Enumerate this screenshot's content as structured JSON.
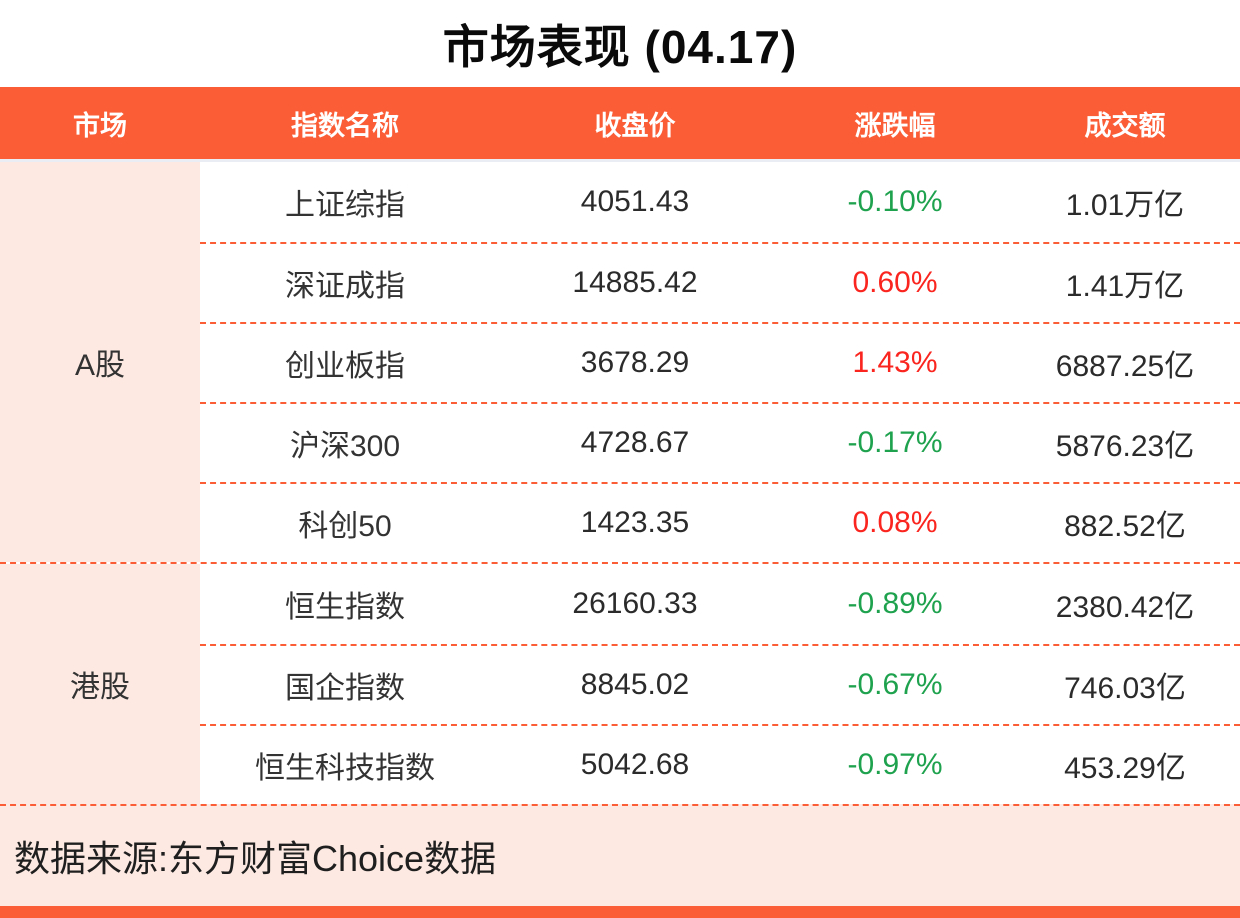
{
  "title": "市场表现 (04.17)",
  "colors": {
    "accent": "#fb5d36",
    "panel": "#fde9e2",
    "up_red": "#fa251f",
    "down_green": "#1fa24e"
  },
  "table": {
    "headers": [
      "市场",
      "指数名称",
      "收盘价",
      "涨跌幅",
      "成交额"
    ],
    "groups": [
      {
        "market": "A股",
        "rows": [
          {
            "name": "上证综指",
            "close": "4051.43",
            "change": "-0.10%",
            "change_color": "#1fa24e",
            "turnover": "1.01万亿"
          },
          {
            "name": "深证成指",
            "close": "14885.42",
            "change": "0.60%",
            "change_color": "#fa251f",
            "turnover": "1.41万亿"
          },
          {
            "name": "创业板指",
            "close": "3678.29",
            "change": "1.43%",
            "change_color": "#fa251f",
            "turnover": "6887.25亿"
          },
          {
            "name": "沪深300",
            "close": "4728.67",
            "change": "-0.17%",
            "change_color": "#1fa24e",
            "turnover": "5876.23亿"
          },
          {
            "name": "科创50",
            "close": "1423.35",
            "change": "0.08%",
            "change_color": "#fa251f",
            "turnover": "882.52亿"
          }
        ]
      },
      {
        "market": "港股",
        "rows": [
          {
            "name": "恒生指数",
            "close": "26160.33",
            "change": "-0.89%",
            "change_color": "#1fa24e",
            "turnover": "2380.42亿"
          },
          {
            "name": "国企指数",
            "close": "8845.02",
            "change": "-0.67%",
            "change_color": "#1fa24e",
            "turnover": "746.03亿"
          },
          {
            "name": "恒生科技指数",
            "close": "5042.68",
            "change": "-0.97%",
            "change_color": "#1fa24e",
            "turnover": "453.29亿"
          }
        ]
      }
    ]
  },
  "footer": {
    "source": "数据来源:东方财富Choice数据"
  },
  "chart_data": {
    "type": "table",
    "title": "市场表现 (04.17)",
    "columns": [
      "市场",
      "指数名称",
      "收盘价",
      "涨跌幅",
      "成交额"
    ],
    "rows": [
      [
        "A股",
        "上证综指",
        4051.43,
        "-0.10%",
        "1.01万亿"
      ],
      [
        "A股",
        "深证成指",
        14885.42,
        "0.60%",
        "1.41万亿"
      ],
      [
        "A股",
        "创业板指",
        3678.29,
        "1.43%",
        "6887.25亿"
      ],
      [
        "A股",
        "沪深300",
        4728.67,
        "-0.17%",
        "5876.23亿"
      ],
      [
        "A股",
        "科创50",
        1423.35,
        "0.08%",
        "882.52亿"
      ],
      [
        "港股",
        "恒生指数",
        26160.33,
        "-0.89%",
        "2380.42亿"
      ],
      [
        "港股",
        "国企指数",
        8845.02,
        "-0.67%",
        "746.03亿"
      ],
      [
        "港股",
        "恒生科技指数",
        5042.68,
        "-0.97%",
        "453.29亿"
      ]
    ],
    "source": "数据来源:东方财富Choice数据"
  }
}
